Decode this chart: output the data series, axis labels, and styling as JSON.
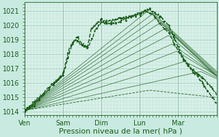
{
  "bg_color": "#c8eae0",
  "plot_bg_color": "#d8f0e8",
  "grid_color_minor": "#b8ddd0",
  "grid_color_major": "#a0ccbc",
  "line_color": "#1a5c1a",
  "ylim": [
    1013.8,
    1021.6
  ],
  "yticks": [
    1014,
    1015,
    1016,
    1017,
    1018,
    1019,
    1020,
    1021
  ],
  "xlabel": "Pression niveau de la mer( hPa )",
  "xlabel_color": "#1a5c1a",
  "xtick_labels": [
    "Ven",
    "Sam",
    "Dim",
    "Lun",
    "Mar"
  ],
  "tick_fontsize": 7,
  "label_fontsize": 8
}
